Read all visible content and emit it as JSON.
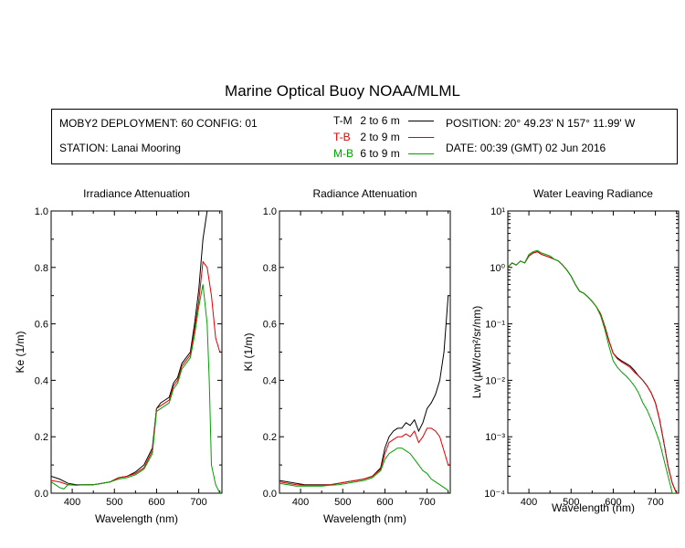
{
  "title": "Marine Optical Buoy NOAA/MLML",
  "info": {
    "deployment": "MOBY2 DEPLOYMENT: 60 CONFIG: 01",
    "station": "STATION: Lanai Mooring",
    "position": "POSITION: 20° 49.23' N   157° 11.99' W",
    "date": "DATE: 00:39 (GMT) 02 Jun 2016"
  },
  "legend": [
    {
      "code": "T-M",
      "range": "2 to 6",
      "unit": "m",
      "color": "#000000"
    },
    {
      "code": "T-B",
      "range": "2 to 9",
      "unit": "m",
      "color": "#e00000"
    },
    {
      "code": "M-B",
      "range": "6 to 9",
      "unit": "m",
      "color": "#00a000"
    }
  ],
  "colors": {
    "T-M": "#000000",
    "T-B": "#e00000",
    "M-B": "#00a000"
  },
  "chart_data": [
    {
      "type": "line",
      "title": "Irradiance Attenuation",
      "xlabel": "Wavelength (nm)",
      "ylabel": "Ke  (1/m)",
      "xlim": [
        350,
        755
      ],
      "ylim": [
        0,
        1.0
      ],
      "xticks": [
        "400",
        "500",
        "600",
        "700"
      ],
      "yticks": [
        "0.0",
        "0.2",
        "0.4",
        "0.6",
        "0.8",
        "1.0"
      ],
      "series": [
        {
          "name": "T-M",
          "x": [
            350,
            370,
            390,
            410,
            430,
            450,
            470,
            490,
            510,
            530,
            550,
            570,
            590,
            600,
            610,
            620,
            630,
            640,
            650,
            660,
            670,
            680,
            690,
            700,
            710,
            720,
            730,
            740,
            750
          ],
          "y": [
            0.06,
            0.05,
            0.035,
            0.03,
            0.03,
            0.03,
            0.035,
            0.04,
            0.055,
            0.06,
            0.075,
            0.1,
            0.16,
            0.3,
            0.32,
            0.33,
            0.34,
            0.39,
            0.41,
            0.46,
            0.48,
            0.5,
            0.6,
            0.72,
            0.9,
            1.0,
            1.0,
            1.0,
            1.0
          ]
        },
        {
          "name": "T-B",
          "x": [
            350,
            370,
            390,
            410,
            430,
            450,
            470,
            490,
            510,
            530,
            550,
            570,
            590,
            600,
            610,
            620,
            630,
            640,
            650,
            660,
            670,
            680,
            690,
            700,
            710,
            720,
            730,
            740,
            750
          ],
          "y": [
            0.045,
            0.04,
            0.03,
            0.028,
            0.03,
            0.03,
            0.035,
            0.04,
            0.055,
            0.06,
            0.07,
            0.09,
            0.15,
            0.3,
            0.31,
            0.32,
            0.33,
            0.38,
            0.4,
            0.45,
            0.47,
            0.49,
            0.58,
            0.68,
            0.82,
            0.8,
            0.7,
            0.55,
            0.5
          ]
        },
        {
          "name": "M-B",
          "x": [
            350,
            360,
            370,
            380,
            390,
            410,
            430,
            450,
            470,
            490,
            510,
            530,
            550,
            570,
            590,
            600,
            610,
            620,
            630,
            640,
            650,
            660,
            670,
            680,
            690,
            700,
            710,
            720,
            725,
            730,
            740,
            750
          ],
          "y": [
            0.04,
            0.03,
            0.02,
            0.015,
            0.03,
            0.028,
            0.03,
            0.03,
            0.035,
            0.04,
            0.05,
            0.055,
            0.065,
            0.085,
            0.14,
            0.29,
            0.3,
            0.31,
            0.32,
            0.37,
            0.39,
            0.44,
            0.46,
            0.48,
            0.56,
            0.66,
            0.74,
            0.6,
            0.4,
            0.1,
            0.03,
            0.0
          ]
        }
      ]
    },
    {
      "type": "line",
      "title": "Radiance Attenuation",
      "xlabel": "Wavelength (nm)",
      "ylabel": "Kl  (1/m)",
      "xlim": [
        350,
        755
      ],
      "ylim": [
        0,
        1.0
      ],
      "xticks": [
        "400",
        "500",
        "600",
        "700"
      ],
      "yticks": [
        "0.0",
        "0.2",
        "0.4",
        "0.6",
        "0.8",
        "1.0"
      ],
      "series": [
        {
          "name": "T-M",
          "x": [
            350,
            370,
            390,
            410,
            430,
            450,
            470,
            490,
            510,
            530,
            550,
            570,
            590,
            600,
            610,
            620,
            630,
            640,
            650,
            660,
            670,
            680,
            690,
            700,
            710,
            720,
            730,
            740,
            745,
            750
          ],
          "y": [
            0.045,
            0.04,
            0.035,
            0.03,
            0.03,
            0.03,
            0.03,
            0.035,
            0.04,
            0.045,
            0.05,
            0.06,
            0.09,
            0.16,
            0.2,
            0.22,
            0.23,
            0.23,
            0.25,
            0.24,
            0.26,
            0.22,
            0.25,
            0.3,
            0.32,
            0.35,
            0.4,
            0.5,
            0.6,
            0.7
          ]
        },
        {
          "name": "T-B",
          "x": [
            350,
            370,
            390,
            410,
            430,
            450,
            470,
            490,
            510,
            530,
            550,
            570,
            590,
            600,
            610,
            620,
            630,
            640,
            650,
            660,
            670,
            680,
            690,
            700,
            710,
            720,
            730,
            740,
            750
          ],
          "y": [
            0.04,
            0.035,
            0.03,
            0.028,
            0.028,
            0.028,
            0.03,
            0.035,
            0.04,
            0.045,
            0.05,
            0.06,
            0.085,
            0.14,
            0.18,
            0.19,
            0.2,
            0.2,
            0.21,
            0.2,
            0.22,
            0.18,
            0.2,
            0.23,
            0.23,
            0.22,
            0.2,
            0.15,
            0.1
          ]
        },
        {
          "name": "M-B",
          "x": [
            350,
            370,
            390,
            410,
            430,
            450,
            470,
            490,
            510,
            530,
            550,
            570,
            590,
            600,
            610,
            620,
            630,
            640,
            650,
            660,
            670,
            680,
            690,
            700,
            710,
            720,
            730,
            740,
            750
          ],
          "y": [
            0.035,
            0.03,
            0.025,
            0.025,
            0.025,
            0.025,
            0.028,
            0.03,
            0.035,
            0.04,
            0.045,
            0.055,
            0.08,
            0.12,
            0.14,
            0.15,
            0.16,
            0.16,
            0.15,
            0.14,
            0.12,
            0.1,
            0.08,
            0.07,
            0.05,
            0.04,
            0.03,
            0.02,
            0.01
          ]
        }
      ]
    },
    {
      "type": "line",
      "title": "Water Leaving Radiance",
      "xlabel": "Wavelength (nm)",
      "ylabel": "Lw  (µW/cm²/sr/nm)",
      "xscale": "linear",
      "yscale": "log",
      "xlim": [
        350,
        755
      ],
      "ylim": [
        0.0001,
        10
      ],
      "xticks": [
        "400",
        "500",
        "600",
        "700"
      ],
      "yticks": [
        "10⁻⁴",
        "10⁻³",
        "10⁻²",
        "10⁻¹",
        "10⁰",
        "10¹"
      ],
      "series": [
        {
          "name": "T-M",
          "x": [
            350,
            360,
            370,
            380,
            390,
            400,
            410,
            420,
            430,
            440,
            450,
            460,
            470,
            480,
            490,
            500,
            510,
            520,
            530,
            540,
            550,
            560,
            570,
            580,
            590,
            600,
            610,
            620,
            630,
            640,
            650,
            660,
            670,
            680,
            690,
            700,
            710,
            720,
            730,
            740,
            750
          ],
          "y": [
            1.0,
            1.2,
            1.1,
            1.3,
            1.2,
            1.6,
            1.8,
            1.9,
            1.7,
            1.6,
            1.5,
            1.4,
            1.3,
            1.1,
            0.9,
            0.7,
            0.5,
            0.38,
            0.35,
            0.3,
            0.25,
            0.2,
            0.15,
            0.09,
            0.05,
            0.03,
            0.025,
            0.022,
            0.02,
            0.018,
            0.015,
            0.012,
            0.01,
            0.008,
            0.006,
            0.004,
            0.002,
            0.0008,
            0.0003,
            0.00015,
            0.0001
          ]
        },
        {
          "name": "T-B",
          "x": [
            350,
            360,
            370,
            380,
            390,
            400,
            410,
            420,
            430,
            440,
            450,
            460,
            470,
            480,
            490,
            500,
            510,
            520,
            530,
            540,
            550,
            560,
            570,
            580,
            590,
            600,
            610,
            620,
            630,
            640,
            650,
            660,
            670,
            680,
            690,
            700,
            710,
            720,
            730,
            740,
            750
          ],
          "y": [
            1.0,
            1.2,
            1.1,
            1.3,
            1.2,
            1.6,
            1.8,
            1.9,
            1.7,
            1.6,
            1.5,
            1.4,
            1.3,
            1.1,
            0.9,
            0.7,
            0.5,
            0.38,
            0.35,
            0.3,
            0.25,
            0.2,
            0.15,
            0.09,
            0.05,
            0.03,
            0.024,
            0.021,
            0.019,
            0.017,
            0.014,
            0.012,
            0.01,
            0.008,
            0.006,
            0.004,
            0.002,
            0.0008,
            0.0003,
            0.00015,
            0.0001
          ]
        },
        {
          "name": "M-B",
          "x": [
            350,
            360,
            370,
            380,
            390,
            400,
            410,
            420,
            430,
            440,
            450,
            460,
            470,
            480,
            490,
            500,
            510,
            520,
            530,
            540,
            550,
            560,
            570,
            580,
            590,
            600,
            610,
            620,
            630,
            640,
            650,
            660,
            670,
            680,
            690,
            700,
            710,
            720,
            730,
            740,
            750
          ],
          "y": [
            1.0,
            1.2,
            1.1,
            1.3,
            1.2,
            1.7,
            1.9,
            2.0,
            1.8,
            1.7,
            1.6,
            1.4,
            1.3,
            1.1,
            0.9,
            0.7,
            0.5,
            0.38,
            0.35,
            0.3,
            0.25,
            0.2,
            0.14,
            0.08,
            0.04,
            0.022,
            0.017,
            0.014,
            0.012,
            0.01,
            0.008,
            0.006,
            0.004,
            0.003,
            0.002,
            0.0013,
            0.0008,
            0.0004,
            0.0002,
            0.0001,
            0.0001
          ]
        }
      ]
    }
  ]
}
